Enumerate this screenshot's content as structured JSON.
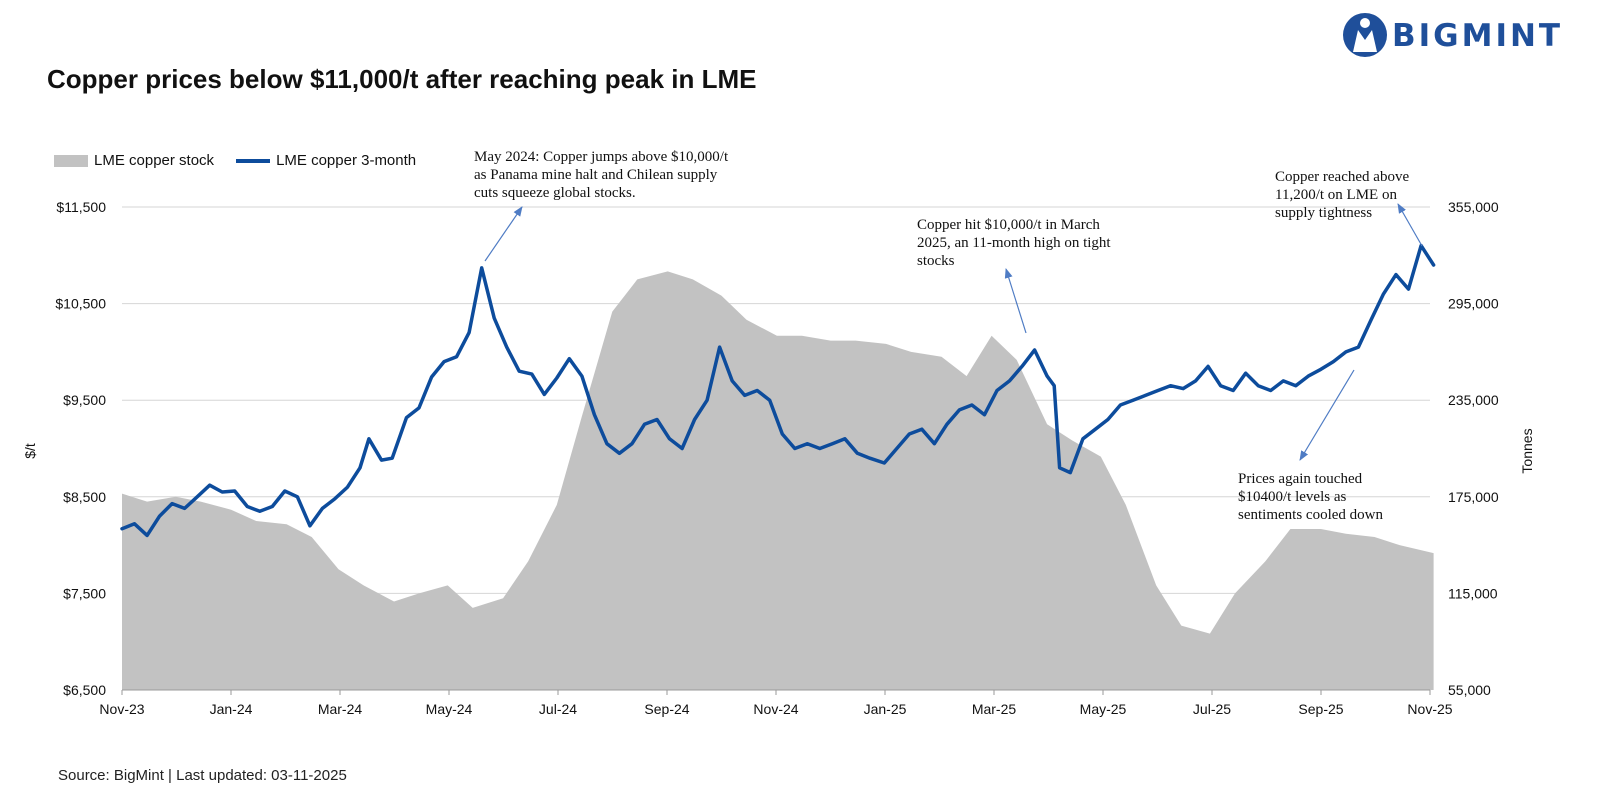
{
  "header": {
    "title": "Copper prices below $11,000/t after reaching peak in LME",
    "brand": "BIGMINT",
    "source": "Source: BigMint | Last updated: 03-11-2025"
  },
  "colors": {
    "line": "#0d4c9c",
    "area": "#c2c2c2",
    "annotation_arrow": "#4f7cc4",
    "brand": "#1f4f9a"
  },
  "chart_data": {
    "type": "line",
    "x_start": "2023-11",
    "x_end": "2025-11",
    "x_ticks": [
      "Nov-23",
      "Jan-24",
      "Mar-24",
      "May-24",
      "Jul-24",
      "Sep-24",
      "Nov-24",
      "Jan-25",
      "Mar-25",
      "May-25",
      "Jul-25",
      "Sep-25",
      "Nov-25"
    ],
    "ylabel": "$/t",
    "y2label": "Tonnes",
    "y_ticks": [
      "$11,500",
      "$10,500",
      "$9,500",
      "$8,500",
      "$7,500",
      "$6,500"
    ],
    "y2_ticks": [
      "355,000",
      "295,000",
      "235,000",
      "175,000",
      "115,000",
      "55,000"
    ],
    "ylim": [
      6500,
      11500
    ],
    "y2lim": [
      55000,
      355000
    ],
    "legend": [
      "LME copper stock",
      "LME copper 3-month"
    ],
    "legend_position": "top-left",
    "grid": "horizontal",
    "series": [
      {
        "name": "LME copper 3-month",
        "axis": "left",
        "kind": "line",
        "points": [
          [
            "2023-11-01",
            8170
          ],
          [
            "2023-11-08",
            8220
          ],
          [
            "2023-11-15",
            8100
          ],
          [
            "2023-11-22",
            8300
          ],
          [
            "2023-11-29",
            8430
          ],
          [
            "2023-12-06",
            8380
          ],
          [
            "2023-12-13",
            8500
          ],
          [
            "2023-12-20",
            8620
          ],
          [
            "2023-12-27",
            8550
          ],
          [
            "2024-01-03",
            8560
          ],
          [
            "2024-01-10",
            8400
          ],
          [
            "2024-01-17",
            8350
          ],
          [
            "2024-01-24",
            8400
          ],
          [
            "2024-01-31",
            8560
          ],
          [
            "2024-02-07",
            8500
          ],
          [
            "2024-02-14",
            8200
          ],
          [
            "2024-02-21",
            8380
          ],
          [
            "2024-02-28",
            8480
          ],
          [
            "2024-03-06",
            8600
          ],
          [
            "2024-03-13",
            8800
          ],
          [
            "2024-03-18",
            9100
          ],
          [
            "2024-03-25",
            8880
          ],
          [
            "2024-03-31",
            8900
          ],
          [
            "2024-04-08",
            9320
          ],
          [
            "2024-04-15",
            9420
          ],
          [
            "2024-04-22",
            9740
          ],
          [
            "2024-04-29",
            9900
          ],
          [
            "2024-05-06",
            9950
          ],
          [
            "2024-05-13",
            10200
          ],
          [
            "2024-05-20",
            10870
          ],
          [
            "2024-05-27",
            10350
          ],
          [
            "2024-06-03",
            10050
          ],
          [
            "2024-06-10",
            9800
          ],
          [
            "2024-06-17",
            9770
          ],
          [
            "2024-06-24",
            9560
          ],
          [
            "2024-07-01",
            9730
          ],
          [
            "2024-07-08",
            9930
          ],
          [
            "2024-07-15",
            9750
          ],
          [
            "2024-07-22",
            9350
          ],
          [
            "2024-07-29",
            9050
          ],
          [
            "2024-08-05",
            8950
          ],
          [
            "2024-08-12",
            9050
          ],
          [
            "2024-08-19",
            9250
          ],
          [
            "2024-08-26",
            9300
          ],
          [
            "2024-09-02",
            9100
          ],
          [
            "2024-09-09",
            9000
          ],
          [
            "2024-09-16",
            9300
          ],
          [
            "2024-09-23",
            9500
          ],
          [
            "2024-09-30",
            10050
          ],
          [
            "2024-10-07",
            9700
          ],
          [
            "2024-10-14",
            9550
          ],
          [
            "2024-10-21",
            9600
          ],
          [
            "2024-10-28",
            9500
          ],
          [
            "2024-11-04",
            9150
          ],
          [
            "2024-11-11",
            9000
          ],
          [
            "2024-11-18",
            9050
          ],
          [
            "2024-11-25",
            9000
          ],
          [
            "2024-12-02",
            9050
          ],
          [
            "2024-12-09",
            9100
          ],
          [
            "2024-12-16",
            8950
          ],
          [
            "2024-12-23",
            8900
          ],
          [
            "2024-12-31",
            8850
          ],
          [
            "2025-01-07",
            9000
          ],
          [
            "2025-01-14",
            9150
          ],
          [
            "2025-01-21",
            9200
          ],
          [
            "2025-01-28",
            9050
          ],
          [
            "2025-02-04",
            9250
          ],
          [
            "2025-02-11",
            9400
          ],
          [
            "2025-02-18",
            9450
          ],
          [
            "2025-02-25",
            9350
          ],
          [
            "2025-03-04",
            9600
          ],
          [
            "2025-03-11",
            9700
          ],
          [
            "2025-03-18",
            9850
          ],
          [
            "2025-03-25",
            10020
          ],
          [
            "2025-04-01",
            9750
          ],
          [
            "2025-04-05",
            9650
          ],
          [
            "2025-04-08",
            8800
          ],
          [
            "2025-04-14",
            8750
          ],
          [
            "2025-04-21",
            9100
          ],
          [
            "2025-04-28",
            9200
          ],
          [
            "2025-05-05",
            9300
          ],
          [
            "2025-05-12",
            9450
          ],
          [
            "2025-05-19",
            9500
          ],
          [
            "2025-05-26",
            9550
          ],
          [
            "2025-06-02",
            9600
          ],
          [
            "2025-06-09",
            9650
          ],
          [
            "2025-06-16",
            9620
          ],
          [
            "2025-06-23",
            9700
          ],
          [
            "2025-06-30",
            9850
          ],
          [
            "2025-07-07",
            9650
          ],
          [
            "2025-07-14",
            9600
          ],
          [
            "2025-07-21",
            9780
          ],
          [
            "2025-07-28",
            9650
          ],
          [
            "2025-08-04",
            9600
          ],
          [
            "2025-08-11",
            9700
          ],
          [
            "2025-08-18",
            9650
          ],
          [
            "2025-08-25",
            9750
          ],
          [
            "2025-09-01",
            9820
          ],
          [
            "2025-09-08",
            9900
          ],
          [
            "2025-09-15",
            10000
          ],
          [
            "2025-09-22",
            10050
          ],
          [
            "2025-09-29",
            10330
          ],
          [
            "2025-10-06",
            10600
          ],
          [
            "2025-10-13",
            10800
          ],
          [
            "2025-10-20",
            10650
          ],
          [
            "2025-10-27",
            11100
          ],
          [
            "2025-11-03",
            10900
          ]
        ]
      },
      {
        "name": "LME copper stock",
        "axis": "right",
        "kind": "area",
        "points": [
          [
            "2023-11-01",
            177000
          ],
          [
            "2023-11-15",
            172000
          ],
          [
            "2023-12-01",
            175000
          ],
          [
            "2023-12-15",
            172000
          ],
          [
            "2024-01-01",
            167000
          ],
          [
            "2024-01-15",
            160000
          ],
          [
            "2024-02-01",
            158000
          ],
          [
            "2024-02-15",
            150000
          ],
          [
            "2024-03-01",
            130000
          ],
          [
            "2024-03-15",
            120000
          ],
          [
            "2024-04-01",
            110000
          ],
          [
            "2024-04-15",
            115000
          ],
          [
            "2024-05-01",
            120000
          ],
          [
            "2024-05-15",
            106000
          ],
          [
            "2024-06-01",
            112000
          ],
          [
            "2024-06-15",
            135000
          ],
          [
            "2024-07-01",
            170000
          ],
          [
            "2024-07-15",
            225000
          ],
          [
            "2024-08-01",
            290000
          ],
          [
            "2024-08-15",
            310000
          ],
          [
            "2024-09-01",
            315000
          ],
          [
            "2024-09-15",
            310000
          ],
          [
            "2024-10-01",
            300000
          ],
          [
            "2024-10-15",
            285000
          ],
          [
            "2024-11-01",
            275000
          ],
          [
            "2024-11-15",
            275000
          ],
          [
            "2024-12-01",
            272000
          ],
          [
            "2024-12-15",
            272000
          ],
          [
            "2025-01-01",
            270000
          ],
          [
            "2025-01-15",
            265000
          ],
          [
            "2025-02-01",
            262000
          ],
          [
            "2025-02-15",
            250000
          ],
          [
            "2025-03-01",
            275000
          ],
          [
            "2025-03-15",
            260000
          ],
          [
            "2025-04-01",
            220000
          ],
          [
            "2025-04-15",
            210000
          ],
          [
            "2025-05-01",
            200000
          ],
          [
            "2025-05-15",
            170000
          ],
          [
            "2025-06-01",
            120000
          ],
          [
            "2025-06-15",
            95000
          ],
          [
            "2025-07-01",
            90000
          ],
          [
            "2025-07-15",
            115000
          ],
          [
            "2025-08-01",
            135000
          ],
          [
            "2025-08-15",
            155000
          ],
          [
            "2025-09-01",
            155000
          ],
          [
            "2025-09-15",
            152000
          ],
          [
            "2025-10-01",
            150000
          ],
          [
            "2025-10-15",
            145000
          ],
          [
            "2025-11-03",
            140000
          ]
        ]
      }
    ],
    "annotations": [
      {
        "text": [
          "May 2024: Copper jumps above $10,000/t",
          "as Panama mine halt and Chilean supply",
          "cuts squeeze global stocks."
        ],
        "point": [
          "2024-05-20",
          10870
        ]
      },
      {
        "text": [
          "Copper hit $10,000/t in March",
          "2025, an 11-month high on tight",
          "stocks"
        ],
        "point": [
          "2025-03-25",
          10020
        ]
      },
      {
        "text": [
          "Copper reached above",
          "11,200/t on LME on",
          "supply tightness"
        ],
        "point": [
          "2025-10-27",
          11100
        ]
      },
      {
        "text": [
          "Prices again touched",
          "$10400/t levels as",
          "sentiments cooled down"
        ],
        "point": [
          "2025-09-29",
          10330
        ]
      }
    ]
  }
}
